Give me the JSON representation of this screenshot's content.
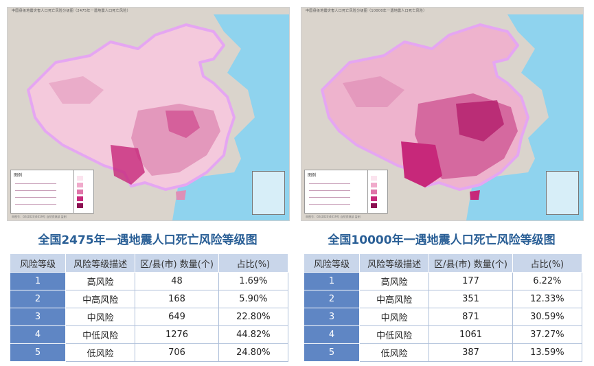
{
  "panels": [
    {
      "map_header": "中国县级地震灾害人口死亡风险分级图（2475年一遇地震人口死亡风险）",
      "legend_title": "图例",
      "map_footer": "审图号：GS(2020)4619号    自然资源部    监制",
      "title": "全国2475年一遇地震人口死亡风险等级图",
      "headers": [
        "风险等级",
        "风险等级描述",
        "区/县(市) 数量(个)",
        "占比(%)"
      ],
      "rows": [
        [
          "1",
          "高风险",
          "48",
          "1.69%"
        ],
        [
          "2",
          "中高风险",
          "168",
          "5.90%"
        ],
        [
          "3",
          "中风险",
          "649",
          "22.80%"
        ],
        [
          "4",
          "中低风险",
          "1276",
          "44.82%"
        ],
        [
          "5",
          "低风险",
          "706",
          "24.80%"
        ]
      ]
    },
    {
      "map_header": "中国县级地震灾害人口死亡风险分级图（10000年一遇地震人口死亡风险）",
      "legend_title": "图例",
      "map_footer": "审图号：GS(2020)4619号    自然资源部    监制",
      "title": "全国10000年一遇地震人口死亡风险等级图",
      "headers": [
        "风险等级",
        "风险等级描述",
        "区/县(市) 数量(个)",
        "占比(%)"
      ],
      "rows": [
        [
          "1",
          "高风险",
          "177",
          "6.22%"
        ],
        [
          "2",
          "中高风险",
          "351",
          "12.33%"
        ],
        [
          "3",
          "中风险",
          "871",
          "30.59%"
        ],
        [
          "4",
          "中低风险",
          "1061",
          "37.27%"
        ],
        [
          "5",
          "低风险",
          "387",
          "13.59%"
        ]
      ]
    }
  ],
  "colors": {
    "sea": "#8fd3ee",
    "land_outside": "#dad4cc",
    "china_low": "#f4c9dc",
    "china_mid": "#df8fb6",
    "china_high": "#c7287a",
    "border_glow": "#e5a6f2",
    "title": "#2a5f96",
    "table_header": "#c9d6ea",
    "level_cell": "#5f86c4"
  },
  "legend_ramp": [
    "#fbe3ee",
    "#f0aacb",
    "#df74a9",
    "#c7287a",
    "#8c0f52"
  ]
}
